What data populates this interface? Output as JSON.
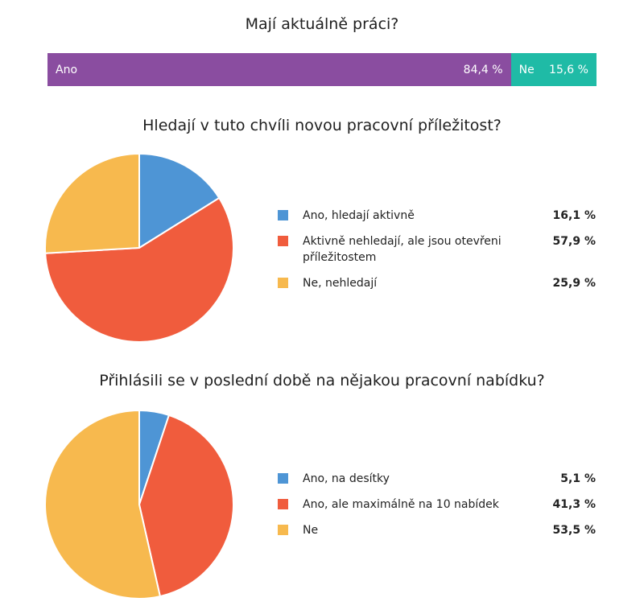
{
  "chart_data": [
    {
      "type": "stacked-bar",
      "title": "Mají aktuálně práci?",
      "categories": [
        "Ano",
        "Ne"
      ],
      "values": [
        84.4,
        15.6
      ],
      "value_labels": [
        "84,4 %",
        "15,6 %"
      ],
      "colors": [
        "#8a4da0",
        "#1fbba6"
      ]
    },
    {
      "type": "pie",
      "title": "Hledají v tuto chvíli novou pracovní příležitost?",
      "categories": [
        "Ano, hledají aktivně",
        "Aktivně nehledají, ale jsou otevřeni příležitostem",
        "Ne, nehledají"
      ],
      "values": [
        16.1,
        57.9,
        25.9
      ],
      "value_labels": [
        "16,1 %",
        "57,9 %",
        "25,9 %"
      ],
      "colors": [
        "#4e95d5",
        "#f05c3d",
        "#f7b94e"
      ]
    },
    {
      "type": "pie",
      "title": "Přihlásili se v poslední době na nějakou pracovní nabídku?",
      "categories": [
        "Ano, na desítky",
        "Ano, ale maximálně na 10 nabídek",
        "Ne"
      ],
      "values": [
        5.1,
        41.3,
        53.5
      ],
      "value_labels": [
        "5,1 %",
        "41,3 %",
        "53,5 %"
      ],
      "colors": [
        "#4e95d5",
        "#f05c3d",
        "#f7b94e"
      ]
    }
  ]
}
